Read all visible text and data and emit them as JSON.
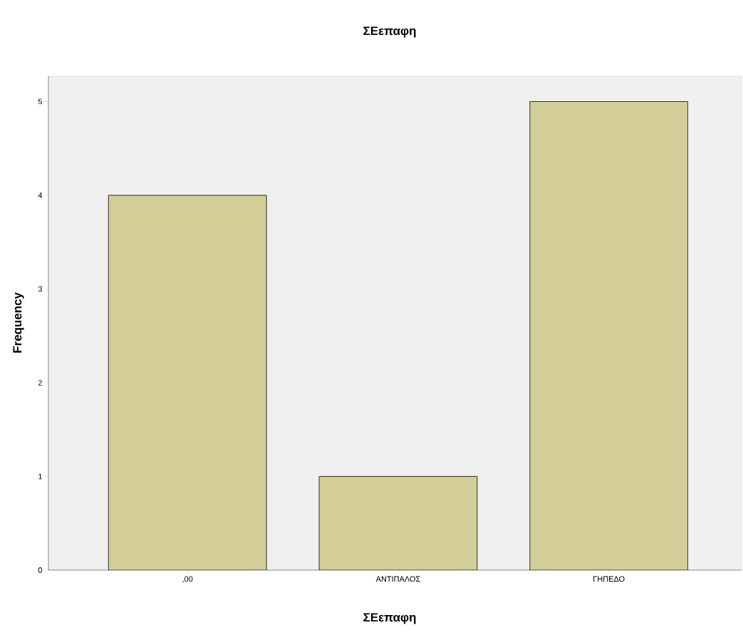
{
  "chart_data": {
    "type": "bar",
    "title": "ΣΕεπαφη",
    "xlabel": "ΣΕεπαφη",
    "ylabel": "Frequency",
    "categories": [
      ",00",
      "ΑΝΤΙΠΑΛΟΣ",
      "ΓΗΠΕΔΟ"
    ],
    "values": [
      4,
      1,
      5
    ],
    "color": "#d3ce97",
    "ylim": [
      0,
      5.27
    ],
    "yticks": [
      0,
      1,
      2,
      3,
      4,
      5
    ]
  }
}
